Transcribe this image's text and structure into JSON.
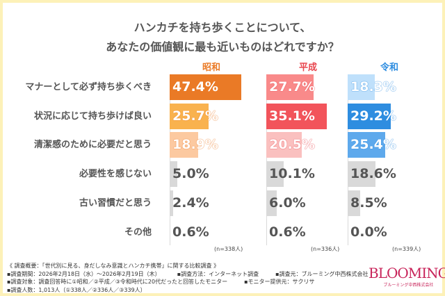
{
  "title_lines": [
    "ハンカチを持ち歩くことについて、",
    "あなたの価値観に最も近いものはどれですか？"
  ],
  "chart_data": {
    "type": "bar",
    "orientation": "horizontal",
    "categories": [
      "マナーとして必ず持ち歩くべき",
      "状況に応じて持ち歩けば良い",
      "清潔感のために必要だと思う",
      "必要性を感じない",
      "古い習慣だと思う",
      "その他"
    ],
    "series": [
      {
        "name": "昭和",
        "values": [
          47.4,
          25.7,
          18.9,
          5.0,
          2.4,
          0.6
        ],
        "n": "(n=338人)",
        "header_color": "#ea7a26",
        "colors": [
          "#ea7a26",
          "#f9b24e",
          "#fcc9a0",
          "#d9d9d9",
          "#d9d9d9",
          "#d9d9d9"
        ]
      },
      {
        "name": "平成",
        "values": [
          27.7,
          35.1,
          20.5,
          10.1,
          6.0,
          0.6
        ],
        "n": "(n=336人)",
        "header_color": "#e8474f",
        "colors": [
          "#f98a8a",
          "#f2545b",
          "#fac0bf",
          "#d9d9d9",
          "#d9d9d9",
          "#d9d9d9"
        ]
      },
      {
        "name": "令和",
        "values": [
          18.3,
          29.2,
          25.4,
          18.6,
          8.5,
          0.0
        ],
        "n": "(n=339人)",
        "header_color": "#2e8de0",
        "colors": [
          "#bfe0fb",
          "#2e8de0",
          "#5ea9ec",
          "#d9d9d9",
          "#d9d9d9",
          "#d9d9d9"
        ]
      }
    ],
    "value_format": "%"
  },
  "notes": {
    "overview": "《 調査概要：「世代別に見る、身だしなみ意識とハンカチ携帯」に関する比較調査 》",
    "period": "▪調査期間：2026年2月18日（水）～2026年2月19日（木）",
    "method": "▪調査方法：インターネット調査",
    "org": "▪調査元：ブルーミング中西株式会社",
    "target": "▪調査対象：調査回答時に①昭和／②平成／③令和時代に20代だったと回答したモニター",
    "provider": "▪モニター提供元：サクリサ",
    "count": "▪調査人数：1,013人（①338人／②336人／③339人）"
  },
  "logo": {
    "name": "BLOOMING",
    "sub": "ブルーミング中西株式会社"
  }
}
